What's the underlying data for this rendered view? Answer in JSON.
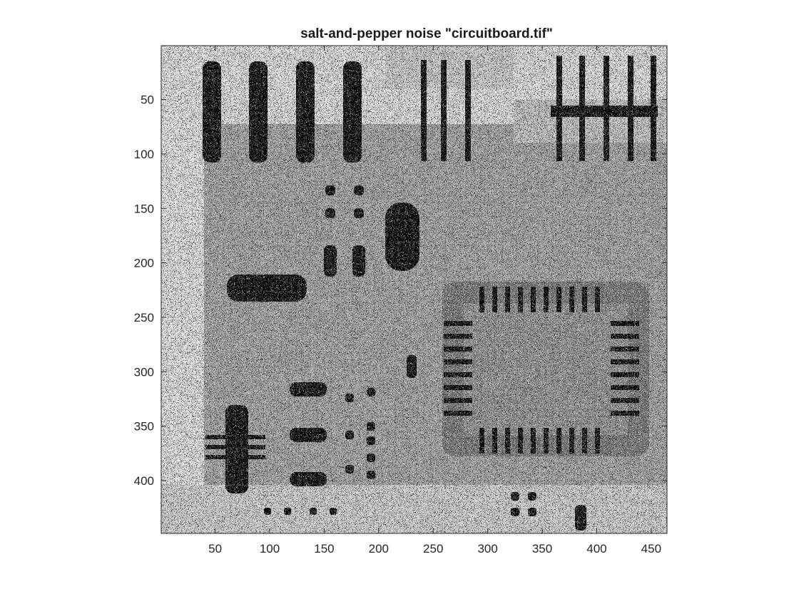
{
  "figure": {
    "title": "salt-and-pepper noise \"circuitboard.tif\"",
    "image": {
      "width": 464,
      "height": 448,
      "colormap": "gray",
      "noise": "salt-and-pepper",
      "file": "circuitboard.tif"
    },
    "xaxis": {
      "ticks": [
        50,
        100,
        150,
        200,
        250,
        300,
        350,
        400,
        450
      ],
      "labels": [
        "50",
        "100",
        "150",
        "200",
        "250",
        "300",
        "350",
        "400",
        "450"
      ]
    },
    "yaxis": {
      "ticks": [
        50,
        100,
        150,
        200,
        250,
        300,
        350,
        400
      ],
      "labels": [
        "50",
        "100",
        "150",
        "200",
        "250",
        "300",
        "350",
        "400"
      ]
    },
    "colors": {
      "background": "#ffffff",
      "axis": "#262626",
      "text": "#1a1a1a"
    }
  }
}
